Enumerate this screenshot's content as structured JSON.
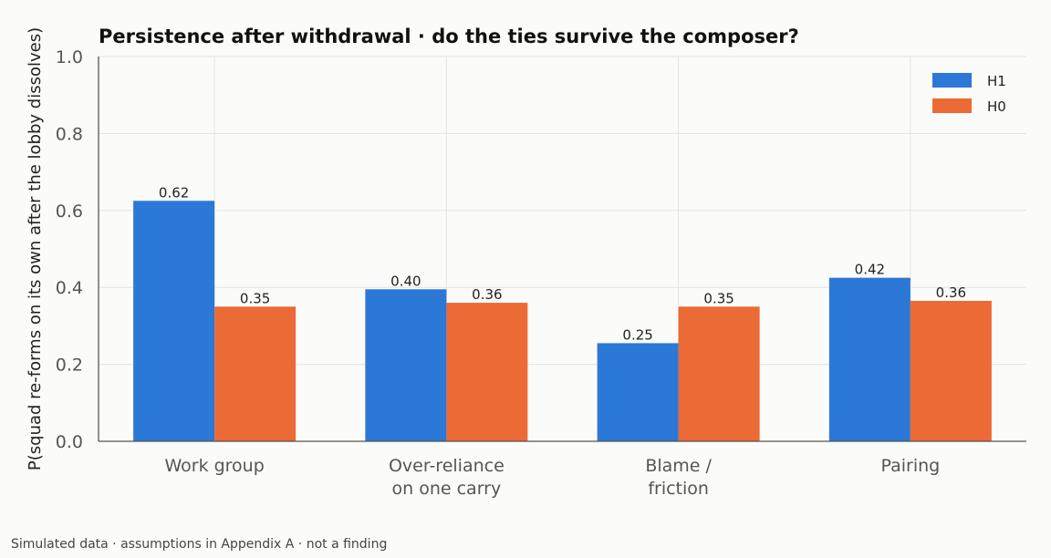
{
  "chart_data": {
    "type": "bar",
    "title": "Persistence after withdrawal · do the ties survive the composer?",
    "ylabel": "P(squad re-forms on its own after the lobby dissolves)",
    "xlabel": "",
    "ylim": [
      0,
      1.0
    ],
    "yticks": [
      "0.0",
      "0.2",
      "0.4",
      "0.6",
      "0.8",
      "1.0"
    ],
    "grid": true,
    "legend_position": "top-right",
    "categories": [
      [
        "Work group"
      ],
      [
        "Over-reliance",
        "on one carry"
      ],
      [
        "Blame /",
        "friction"
      ],
      [
        "Pairing"
      ]
    ],
    "series": [
      {
        "name": "H1",
        "color": "#2b78d6",
        "values": [
          0.625,
          0.395,
          0.255,
          0.425
        ],
        "labels": [
          "0.62",
          "0.40",
          "0.25",
          "0.42"
        ]
      },
      {
        "name": "H0",
        "color": "#eb6a35",
        "values": [
          0.35,
          0.36,
          0.35,
          0.365
        ],
        "labels": [
          "0.35",
          "0.36",
          "0.35",
          "0.36"
        ]
      }
    ]
  },
  "footnote": "Simulated data · assumptions in Appendix A · not a finding"
}
